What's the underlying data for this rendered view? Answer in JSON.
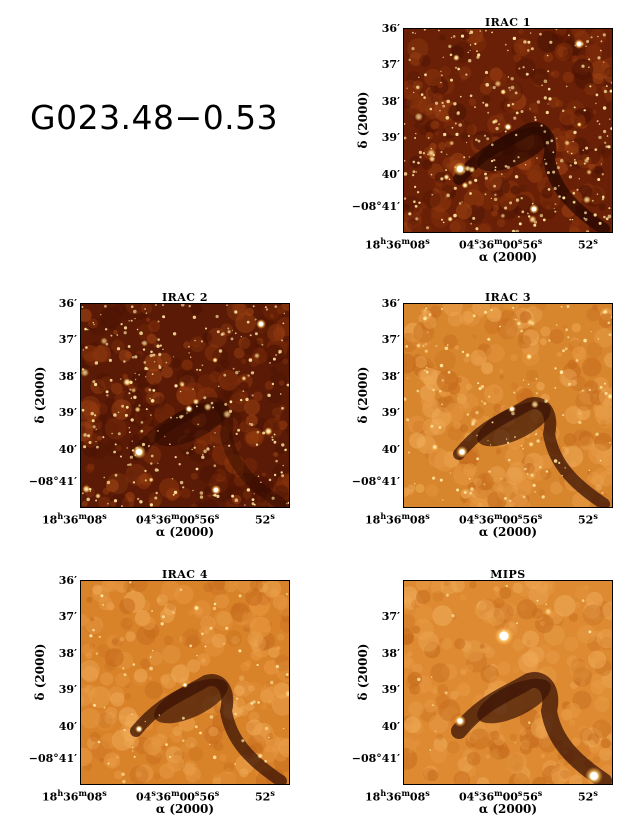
{
  "title": "G023.48−0.53",
  "axes": {
    "y_ticks": [
      "36′",
      "37′",
      "38′",
      "39′",
      "40′",
      "−08°41′"
    ],
    "y_label": "δ (2000)",
    "x_tick_left": "18h36m08s",
    "x_tick_mid": "04s36m00s56s",
    "x_tick_right": "52s",
    "x_label": "α (2000)"
  },
  "panels": [
    {
      "name": "IRAC 1"
    },
    {
      "name": "IRAC 2"
    },
    {
      "name": "IRAC 3"
    },
    {
      "name": "IRAC 4"
    },
    {
      "name": "MIPS"
    }
  ],
  "colors": {
    "dark": "#3a0c02",
    "mid": "#a34812",
    "bright": "#ffe8a0"
  }
}
